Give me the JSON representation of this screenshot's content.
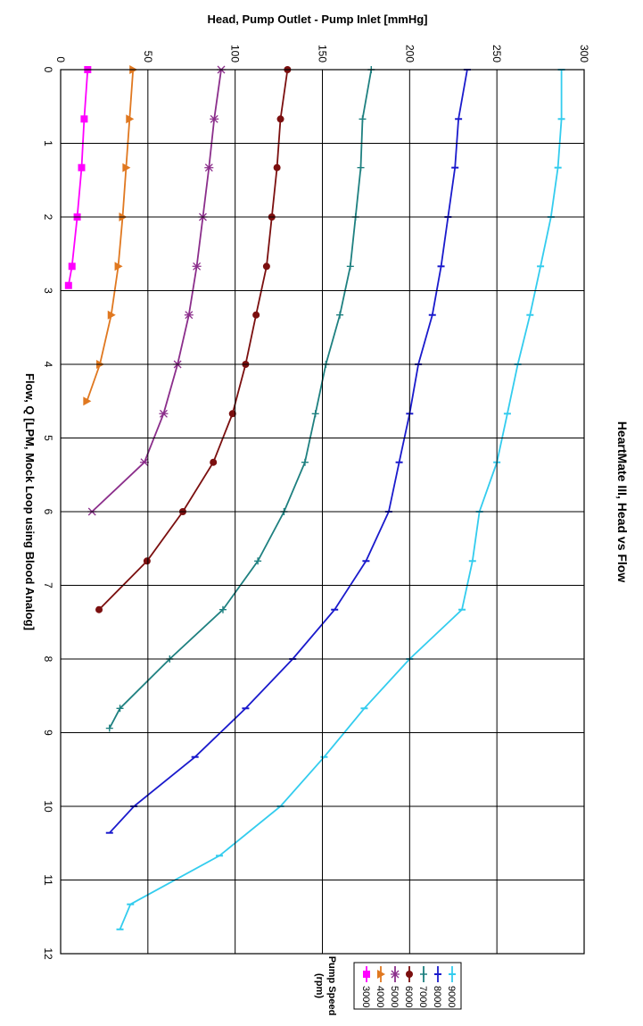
{
  "chart_data": {
    "type": "line",
    "rotation_deg": 90,
    "title": "HeartMate III, Head vs Flow",
    "xlabel": "Flow, Q [LPM, Mock Loop using Blood Analog]",
    "ylabel": "Head, Pump Outlet - Pump Inlet [mmHg]",
    "xlim": [
      0,
      12
    ],
    "ylim": [
      0,
      300
    ],
    "xticks": [
      "0",
      "1",
      "2",
      "3",
      "4",
      "5",
      "6",
      "7",
      "8",
      "9",
      "10",
      "11",
      "12"
    ],
    "yticks": [
      "0",
      "50",
      "100",
      "150",
      "200",
      "250",
      "300"
    ],
    "grid": true,
    "legend": {
      "title_line1": "Pump Speed",
      "title_line2": "(rpm)",
      "placement": "right",
      "labels": [
        "3000",
        "4000",
        "5000",
        "6000",
        "7000",
        "8000",
        "9000"
      ]
    },
    "series": [
      {
        "name": "3000",
        "color": "#ff00ff",
        "marker": "square",
        "x": [
          0,
          0.67,
          1.33,
          2.0,
          2.67,
          2.93
        ],
        "y": [
          15.5,
          13.5,
          12,
          9.5,
          6.5,
          4.5
        ]
      },
      {
        "name": "4000",
        "color": "#e07820",
        "marker": "triangle",
        "x": [
          0,
          0.67,
          1.33,
          2.0,
          2.67,
          3.33,
          4.0,
          4.5
        ],
        "y": [
          41.5,
          39.5,
          37.5,
          35.5,
          33,
          29,
          22.5,
          15
        ]
      },
      {
        "name": "5000",
        "color": "#8b2e8b",
        "marker": "star",
        "x": [
          0,
          0.67,
          1.33,
          2.0,
          2.67,
          3.33,
          4.0,
          4.67,
          5.33,
          6.0
        ],
        "y": [
          92,
          88,
          85,
          81.5,
          78,
          73.5,
          67,
          59,
          48,
          18
        ]
      },
      {
        "name": "6000",
        "color": "#7b0f0f",
        "marker": "circle",
        "x": [
          0,
          0.67,
          1.33,
          2.0,
          2.67,
          3.33,
          4.0,
          4.67,
          5.33,
          6.0,
          6.67,
          7.33
        ],
        "y": [
          130,
          126,
          124,
          121,
          118,
          112,
          106,
          98.5,
          87.5,
          70,
          49.5,
          22
        ]
      },
      {
        "name": "7000",
        "color": "#1e8080",
        "marker": "plus",
        "x": [
          0,
          0.67,
          1.33,
          2.0,
          2.67,
          3.33,
          4.0,
          4.67,
          5.33,
          6.0,
          6.67,
          7.33,
          8.0,
          8.67,
          8.94
        ],
        "y": [
          178,
          173,
          172,
          169,
          166,
          160,
          152,
          146,
          140,
          128,
          113,
          93,
          62.5,
          34,
          28
        ]
      },
      {
        "name": "8000",
        "color": "#1a1acc",
        "marker": "dash",
        "x": [
          0,
          0.67,
          1.33,
          2.0,
          2.67,
          3.33,
          4.0,
          4.67,
          5.33,
          6.0,
          6.67,
          7.33,
          8.0,
          8.67,
          9.33,
          10.0,
          10.36
        ],
        "y": [
          233,
          228,
          226,
          222,
          218,
          213,
          205,
          200,
          194,
          188,
          175,
          157,
          133,
          106,
          77,
          42,
          28
        ]
      },
      {
        "name": "9000",
        "color": "#33ccee",
        "marker": "dash",
        "x": [
          0,
          0.67,
          1.33,
          2.0,
          2.67,
          3.33,
          4.0,
          4.67,
          5.33,
          6.0,
          6.67,
          7.33,
          8.0,
          8.67,
          9.33,
          10.0,
          10.67,
          11.33,
          11.67
        ],
        "y": [
          287,
          287,
          285,
          281,
          275,
          269,
          262,
          256,
          250,
          240,
          236,
          230,
          200,
          174,
          151,
          126,
          91,
          40,
          34
        ]
      }
    ]
  }
}
